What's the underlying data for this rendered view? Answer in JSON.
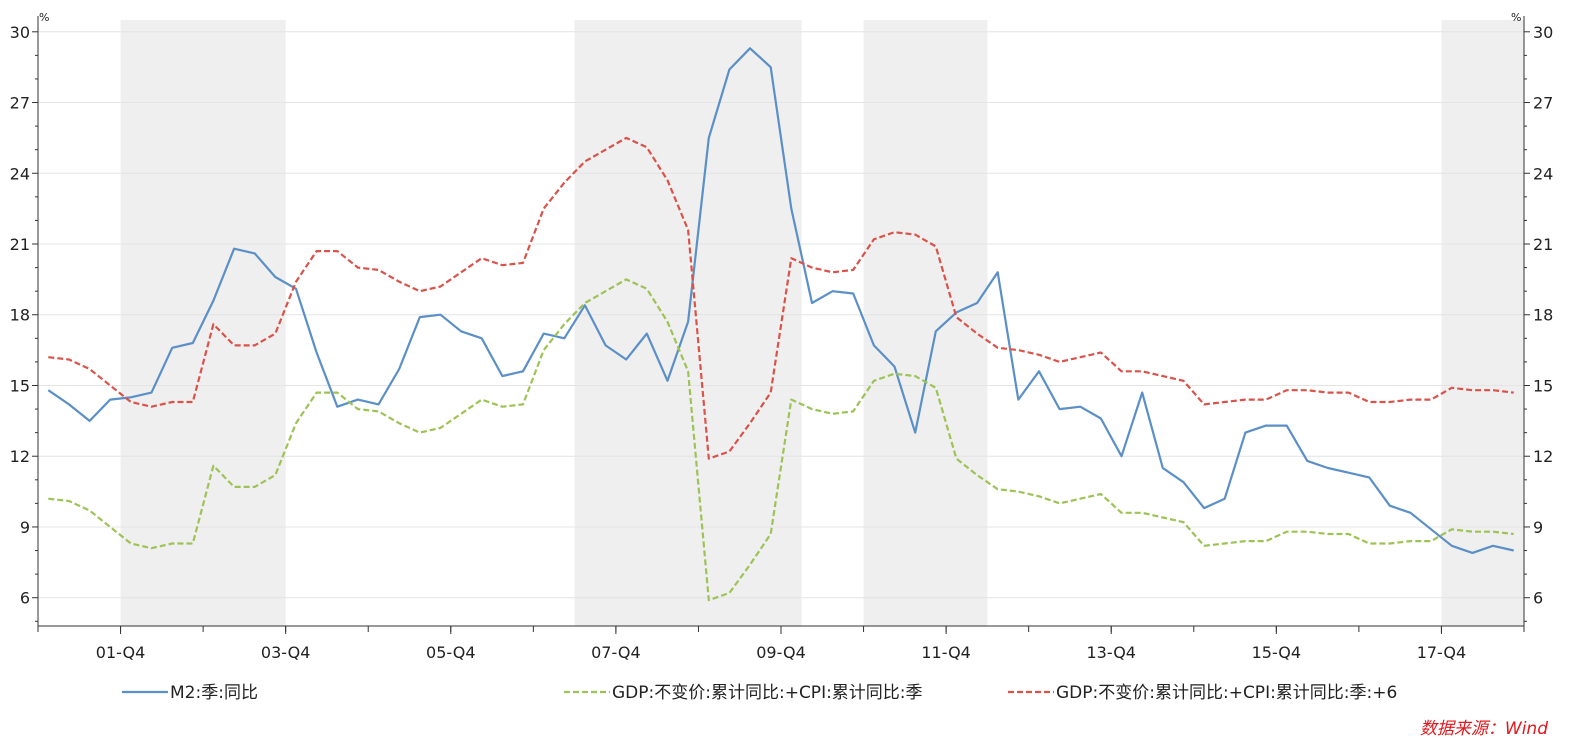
{
  "chart_data": {
    "type": "line",
    "unit_left": "%",
    "unit_right": "%",
    "y_axis": {
      "min": 4.8,
      "max": 30.5,
      "ticks": [
        30,
        27,
        24,
        21,
        18,
        15,
        12,
        9,
        6
      ]
    },
    "x_axis": {
      "start_quarter": "2001-Q1",
      "tick_labels": [
        "01-Q4",
        "03-Q4",
        "05-Q4",
        "07-Q4",
        "09-Q4",
        "11-Q4",
        "13-Q4",
        "15-Q4",
        "17-Q4"
      ]
    },
    "shaded_periods": [
      [
        "2002-Q1",
        "2003-Q4"
      ],
      [
        "2007-Q3",
        "2010-Q1"
      ],
      [
        "2011-Q1",
        "2012-Q2"
      ],
      [
        "2018-Q1",
        "2018-Q4"
      ]
    ],
    "grid": true,
    "legend_position": "bottom",
    "series": [
      {
        "name": "M2:季:同比",
        "color": "#5b8fc7",
        "style": "solid",
        "values": [
          14.8,
          14.2,
          13.5,
          14.4,
          14.5,
          14.7,
          16.6,
          16.8,
          18.6,
          20.8,
          20.6,
          19.6,
          19.1,
          16.4,
          14.1,
          14.4,
          14.2,
          15.7,
          17.9,
          18.0,
          17.3,
          17.0,
          15.4,
          15.6,
          17.2,
          17.0,
          18.4,
          16.7,
          16.1,
          17.2,
          15.2,
          17.7,
          25.5,
          28.4,
          29.3,
          28.5,
          22.5,
          18.5,
          19.0,
          18.9,
          16.7,
          15.8,
          13.0,
          17.3,
          18.1,
          18.5,
          19.8,
          14.4,
          15.6,
          14.0,
          14.1,
          13.6,
          12.0,
          14.7,
          11.5,
          10.9,
          9.8,
          10.2,
          13.0,
          13.3,
          13.3,
          11.8,
          11.5,
          11.3,
          11.1,
          9.9,
          9.6,
          8.9,
          8.2,
          7.9,
          8.2,
          8.0
        ]
      },
      {
        "name": "GDP:不变价:累计同比:+CPI:累计同比:季",
        "color": "#9dc356",
        "style": "dashed",
        "values": [
          10.2,
          10.1,
          9.7,
          9.0,
          8.3,
          8.1,
          8.3,
          8.3,
          11.6,
          10.7,
          10.7,
          11.2,
          13.4,
          14.7,
          14.7,
          14.0,
          13.9,
          13.4,
          13.0,
          13.2,
          13.8,
          14.4,
          14.1,
          14.2,
          16.5,
          17.6,
          18.5,
          19.0,
          19.5,
          19.1,
          17.7,
          15.6,
          5.9,
          6.2,
          7.4,
          8.7,
          14.4,
          14.0,
          13.8,
          13.9,
          15.2,
          15.5,
          15.4,
          14.9,
          11.9,
          11.2,
          10.6,
          10.5,
          10.3,
          10.0,
          10.2,
          10.4,
          9.6,
          9.6,
          9.4,
          9.2,
          8.2,
          8.3,
          8.4,
          8.4,
          8.8,
          8.8,
          8.7,
          8.7,
          8.3,
          8.3,
          8.4,
          8.4,
          8.9,
          8.8,
          8.8,
          8.7
        ]
      },
      {
        "name": "GDP:不变价:累计同比:+CPI:累计同比:季:+6",
        "color": "#d9534a",
        "style": "dashed",
        "values": [
          16.2,
          16.1,
          15.7,
          15.0,
          14.3,
          14.1,
          14.3,
          14.3,
          17.6,
          16.7,
          16.7,
          17.2,
          19.4,
          20.7,
          20.7,
          20.0,
          19.9,
          19.4,
          19.0,
          19.2,
          19.8,
          20.4,
          20.1,
          20.2,
          22.5,
          23.6,
          24.5,
          25.0,
          25.5,
          25.1,
          23.7,
          21.6,
          11.9,
          12.2,
          13.4,
          14.7,
          20.4,
          20.0,
          19.8,
          19.9,
          21.2,
          21.5,
          21.4,
          20.9,
          17.9,
          17.2,
          16.6,
          16.5,
          16.3,
          16.0,
          16.2,
          16.4,
          15.6,
          15.6,
          15.4,
          15.2,
          14.2,
          14.3,
          14.4,
          14.4,
          14.8,
          14.8,
          14.7,
          14.7,
          14.3,
          14.3,
          14.4,
          14.4,
          14.9,
          14.8,
          14.8,
          14.7
        ]
      }
    ]
  },
  "source_text": "数据来源：Wind"
}
